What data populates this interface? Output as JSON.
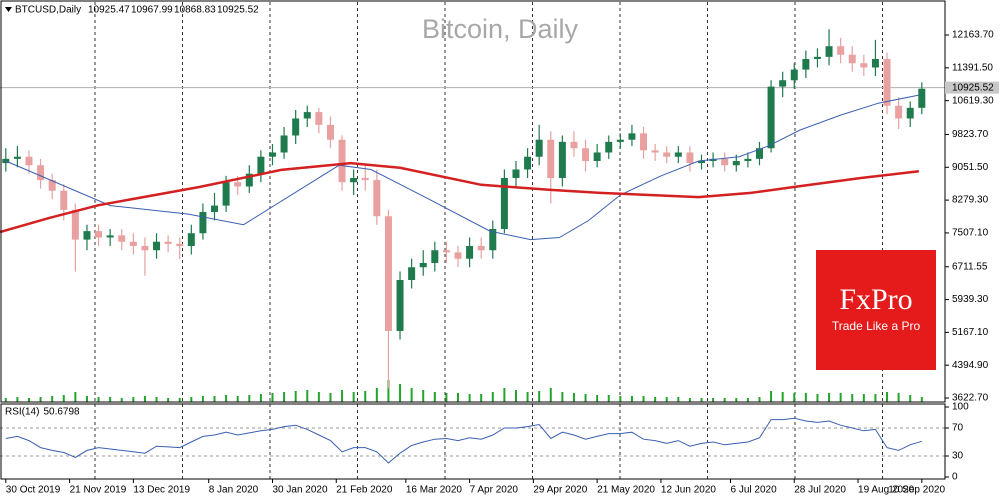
{
  "chart_data": {
    "type": "candlestick",
    "title": "Bitcoin, Daily",
    "instrument": "BTCUSD,Daily",
    "last": {
      "open": 10925.47,
      "high": 10967.99,
      "low": 10868.83,
      "close": 10925.52
    },
    "xlim": [
      -2,
      324
    ],
    "ylim": [
      3529,
      12917
    ],
    "xticks": [
      {
        "value": 0,
        "label": "30 Oct 2019"
      },
      {
        "value": 22,
        "label": "21 Nov 2019"
      },
      {
        "value": 44,
        "label": "13 Dec 2019"
      },
      {
        "value": 70,
        "label": "8 Jan 2020"
      },
      {
        "value": 92,
        "label": "30 Jan 2020"
      },
      {
        "value": 114,
        "label": "21 Feb 2020"
      },
      {
        "value": 138,
        "label": "16 Mar 2020"
      },
      {
        "value": 160,
        "label": "7 Apr 2020"
      },
      {
        "value": 182,
        "label": "29 Apr 2020"
      },
      {
        "value": 204,
        "label": "21 May 2020"
      },
      {
        "value": 226,
        "label": "12 Jun 2020"
      },
      {
        "value": 250,
        "label": "6 Jul 2020"
      },
      {
        "value": 272,
        "label": "28 Jul 2020"
      },
      {
        "value": 294,
        "label": "19 Aug 2020"
      },
      {
        "value": 316,
        "label": "10 Sep 2020"
      }
    ],
    "yticks": [
      {
        "value": 12163.7,
        "label": "12163.70"
      },
      {
        "value": 11391.5,
        "label": "11391.50"
      },
      {
        "value": 10619.3,
        "label": "10619.30"
      },
      {
        "value": 9823.7,
        "label": "9823.70"
      },
      {
        "value": 9051.5,
        "label": "9051.50"
      },
      {
        "value": 8279.3,
        "label": "8279.30"
      },
      {
        "value": 7507.1,
        "label": "7507.10"
      },
      {
        "value": 6711.55,
        "label": "6711.55"
      },
      {
        "value": 5939.3,
        "label": "5939.30"
      },
      {
        "value": 5167.1,
        "label": "5167.10"
      },
      {
        "value": 4394.9,
        "label": "4394.90"
      },
      {
        "value": 3622.7,
        "label": "3622.70"
      }
    ],
    "up_color": "#1f7a4d",
    "down_color": "#e8a0a0",
    "x": [
      0,
      4,
      8,
      12,
      16,
      20,
      24,
      28,
      32,
      36,
      40,
      44,
      48,
      52,
      56,
      60,
      64,
      68,
      72,
      76,
      80,
      84,
      88,
      92,
      96,
      100,
      104,
      108,
      112,
      116,
      120,
      124,
      128,
      132,
      136,
      140,
      144,
      148,
      152,
      156,
      160,
      164,
      168,
      172,
      176,
      180,
      184,
      188,
      192,
      196,
      200,
      204,
      208,
      212,
      216,
      220,
      224,
      228,
      232,
      236,
      240,
      244,
      248,
      252,
      256,
      260,
      264,
      268,
      272,
      276,
      280,
      284,
      288,
      292,
      296,
      300,
      304,
      308,
      312,
      316
    ],
    "open": [
      9150,
      9250,
      9300,
      9100,
      8750,
      8500,
      8050,
      7350,
      7550,
      7400,
      7450,
      7300,
      7200,
      7100,
      7300,
      7250,
      7200,
      7500,
      8000,
      8150,
      8700,
      8600,
      8900,
      9300,
      9400,
      9800,
      10200,
      10350,
      10050,
      9700,
      8700,
      8800,
      8750,
      7900,
      5200,
      6400,
      6700,
      6800,
      7100,
      7050,
      6900,
      7200,
      7100,
      7600,
      8800,
      9000,
      9300,
      9700,
      8800,
      9650,
      9500,
      9200,
      9400,
      9650,
      9700,
      9850,
      9450,
      9400,
      9300,
      9400,
      9150,
      9200,
      9250,
      9100,
      9200,
      9250,
      9500,
      10950,
      11100,
      11350,
      11600,
      11650,
      11900,
      11700,
      11500,
      11400,
      11600,
      10500,
      10200,
      10450
    ],
    "high": [
      9500,
      9550,
      9450,
      9250,
      8900,
      8650,
      8200,
      7700,
      7700,
      7600,
      7600,
      7500,
      7400,
      7500,
      7450,
      7400,
      7700,
      8200,
      8450,
      8850,
      8850,
      9100,
      9450,
      9600,
      10000,
      10400,
      10500,
      10450,
      10250,
      9800,
      9000,
      9100,
      9000,
      8050,
      6600,
      6900,
      7100,
      7300,
      7300,
      7200,
      7400,
      7400,
      7800,
      9000,
      9200,
      9500,
      10050,
      9900,
      9800,
      9900,
      9700,
      9600,
      9800,
      9850,
      10050,
      10000,
      9600,
      9550,
      9550,
      9550,
      9350,
      9400,
      9400,
      9350,
      9400,
      9650,
      11100,
      11300,
      11500,
      11800,
      11850,
      12300,
      12100,
      11900,
      11700,
      12050,
      11750,
      10700,
      10600,
      11050
    ],
    "low": [
      8950,
      9050,
      8900,
      8550,
      8300,
      7800,
      6600,
      7100,
      7200,
      7200,
      7100,
      7000,
      6500,
      6900,
      7050,
      6900,
      7000,
      7350,
      7800,
      8000,
      8400,
      8450,
      8700,
      9100,
      9250,
      9600,
      10000,
      9850,
      9500,
      8500,
      8400,
      8500,
      7700,
      3850,
      5000,
      6200,
      6500,
      6600,
      6800,
      6700,
      6700,
      6900,
      6900,
      7500,
      8600,
      8800,
      9100,
      8200,
      8600,
      9300,
      8950,
      9050,
      9250,
      9500,
      9550,
      9250,
      9200,
      9150,
      9150,
      8950,
      9000,
      9050,
      8950,
      8950,
      9050,
      9100,
      9400,
      10700,
      10900,
      11150,
      11400,
      11450,
      11500,
      11300,
      11200,
      11200,
      10300,
      9950,
      10000,
      10300
    ],
    "close": [
      9250,
      9300,
      9100,
      8750,
      8500,
      8050,
      7350,
      7550,
      7400,
      7450,
      7300,
      7200,
      7100,
      7300,
      7250,
      7200,
      7500,
      8000,
      8150,
      8700,
      8600,
      8900,
      9300,
      9400,
      9800,
      10200,
      10350,
      10050,
      9700,
      8700,
      8800,
      8750,
      7900,
      5200,
      6400,
      6700,
      6800,
      7100,
      7050,
      6900,
      7200,
      7100,
      7600,
      8800,
      9000,
      9300,
      9700,
      8800,
      9650,
      9500,
      9200,
      9400,
      9650,
      9700,
      9850,
      9450,
      9400,
      9300,
      9400,
      9150,
      9200,
      9250,
      9100,
      9200,
      9250,
      9500,
      10950,
      11100,
      11350,
      11600,
      11650,
      11900,
      11700,
      11500,
      11400,
      11600,
      10500,
      10200,
      10450,
      10900
    ],
    "volume_color": "#22a52a",
    "volume": [
      4,
      5,
      4,
      5,
      6,
      7,
      10,
      6,
      5,
      5,
      4,
      5,
      6,
      5,
      4,
      4,
      5,
      6,
      6,
      7,
      6,
      7,
      8,
      9,
      10,
      11,
      12,
      10,
      9,
      12,
      10,
      11,
      14,
      22,
      18,
      14,
      12,
      10,
      9,
      9,
      8,
      8,
      10,
      14,
      12,
      10,
      11,
      14,
      10,
      9,
      8,
      7,
      7,
      6,
      6,
      6,
      5,
      5,
      5,
      4,
      4,
      4,
      4,
      4,
      4,
      5,
      11,
      10,
      9,
      9,
      8,
      9,
      9,
      8,
      8,
      8,
      10,
      9,
      7,
      5
    ],
    "moving_averages": [
      {
        "color": "#3a5fb0",
        "x": [
          0,
          36,
          63,
          82,
          115,
          126,
          146,
          167,
          181,
          191,
          201,
          212,
          226,
          239,
          253,
          263,
          274,
          288,
          301,
          315
        ],
        "values": [
          9200,
          8150,
          7950,
          7700,
          9100,
          9000,
          8300,
          7550,
          7350,
          7400,
          7800,
          8400,
          8850,
          9200,
          9300,
          9550,
          9930,
          10280,
          10560,
          10750
        ]
      },
      {
        "color": "#d42020",
        "x": [
          -2,
          15,
          32,
          67,
          95,
          119,
          136,
          164,
          188,
          205,
          239,
          257,
          274,
          295,
          315
        ],
        "values": [
          7530,
          7860,
          8160,
          8590,
          8990,
          9150,
          9040,
          8640,
          8520,
          8450,
          8350,
          8450,
          8610,
          8800,
          8960
        ]
      }
    ],
    "rsi": {
      "name": "RSI(14)",
      "last": 50.6798,
      "color": "#3a5fb0",
      "ylim": [
        0,
        100
      ],
      "yticks": [
        100,
        70,
        30,
        0
      ],
      "levels": [
        70,
        30
      ],
      "values": [
        55,
        58,
        52,
        42,
        38,
        35,
        28,
        38,
        42,
        40,
        38,
        36,
        34,
        44,
        43,
        42,
        50,
        58,
        60,
        64,
        60,
        63,
        66,
        68,
        72,
        74,
        68,
        60,
        52,
        36,
        42,
        42,
        36,
        20,
        34,
        45,
        50,
        54,
        55,
        52,
        56,
        54,
        60,
        70,
        70,
        72,
        75,
        55,
        64,
        60,
        54,
        58,
        62,
        62,
        64,
        54,
        52,
        48,
        52,
        44,
        48,
        50,
        46,
        48,
        50,
        56,
        82,
        82,
        84,
        80,
        78,
        80,
        74,
        70,
        66,
        68,
        42,
        38,
        46,
        51
      ]
    }
  },
  "logo": {
    "brand": "FxPro",
    "tagline": "Trade Like a Pro"
  }
}
